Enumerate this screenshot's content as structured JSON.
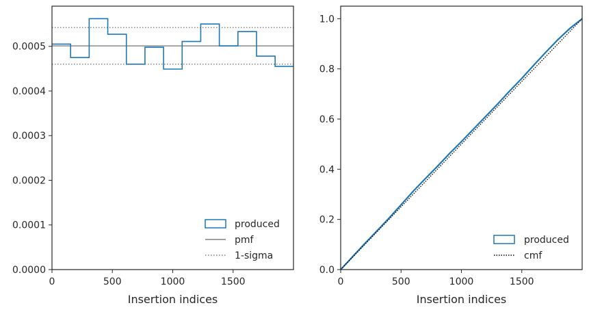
{
  "chart_data": [
    {
      "type": "step",
      "xlabel": "Insertion indices",
      "ylabel": "",
      "xlim": [
        0,
        2000
      ],
      "ylim": [
        0,
        0.00059
      ],
      "xticks": [
        0,
        500,
        1000,
        1500
      ],
      "yticks": [
        0.0,
        0.0001,
        0.0002,
        0.0003,
        0.0004,
        0.0005
      ],
      "ytick_labels": [
        "0.0000",
        "0.0001",
        "0.0002",
        "0.0003",
        "0.0004",
        "0.0005"
      ],
      "bin_edges": [
        0,
        154,
        308,
        462,
        616,
        770,
        924,
        1078,
        1232,
        1386,
        1540,
        1694,
        1848,
        2000
      ],
      "produced": [
        0.000505,
        0.000475,
        0.000562,
        0.000527,
        0.00046,
        0.000498,
        0.000449,
        0.000511,
        0.00055,
        0.000501,
        0.000533,
        0.000478,
        0.000455
      ],
      "pmf": 0.000501,
      "sigma_upper": 0.000542,
      "sigma_lower": 0.00046,
      "legend": {
        "placement": "lower-right",
        "entries": [
          "produced",
          "pmf",
          "1-sigma"
        ]
      },
      "colors": {
        "produced": "#1f77b4",
        "pmf": "#808080",
        "sigma": "#808080"
      }
    },
    {
      "type": "line",
      "xlabel": "Insertion indices",
      "ylabel": "",
      "xlim": [
        0,
        2000
      ],
      "ylim": [
        0,
        1.05
      ],
      "xticks": [
        0,
        500,
        1000,
        1500
      ],
      "yticks": [
        0.0,
        0.2,
        0.4,
        0.6,
        0.8,
        1.0
      ],
      "ytick_labels": [
        "0.0",
        "0.2",
        "0.4",
        "0.6",
        "0.8",
        "1.0"
      ],
      "produced": {
        "x": [
          0,
          100,
          200,
          300,
          400,
          500,
          600,
          700,
          800,
          900,
          1000,
          1100,
          1200,
          1300,
          1400,
          1500,
          1600,
          1700,
          1800,
          1900,
          2000
        ],
        "y": [
          0.0,
          0.052,
          0.104,
          0.154,
          0.205,
          0.258,
          0.312,
          0.362,
          0.411,
          0.462,
          0.51,
          0.56,
          0.61,
          0.66,
          0.712,
          0.762,
          0.815,
          0.867,
          0.917,
          0.962,
          1.0
        ]
      },
      "cmf": {
        "x": [
          0,
          2000
        ],
        "y": [
          0,
          1
        ]
      },
      "legend": {
        "placement": "lower-right",
        "entries": [
          "produced",
          "cmf"
        ]
      },
      "colors": {
        "produced": "#1f77b4",
        "cmf": "#000000"
      }
    }
  ]
}
